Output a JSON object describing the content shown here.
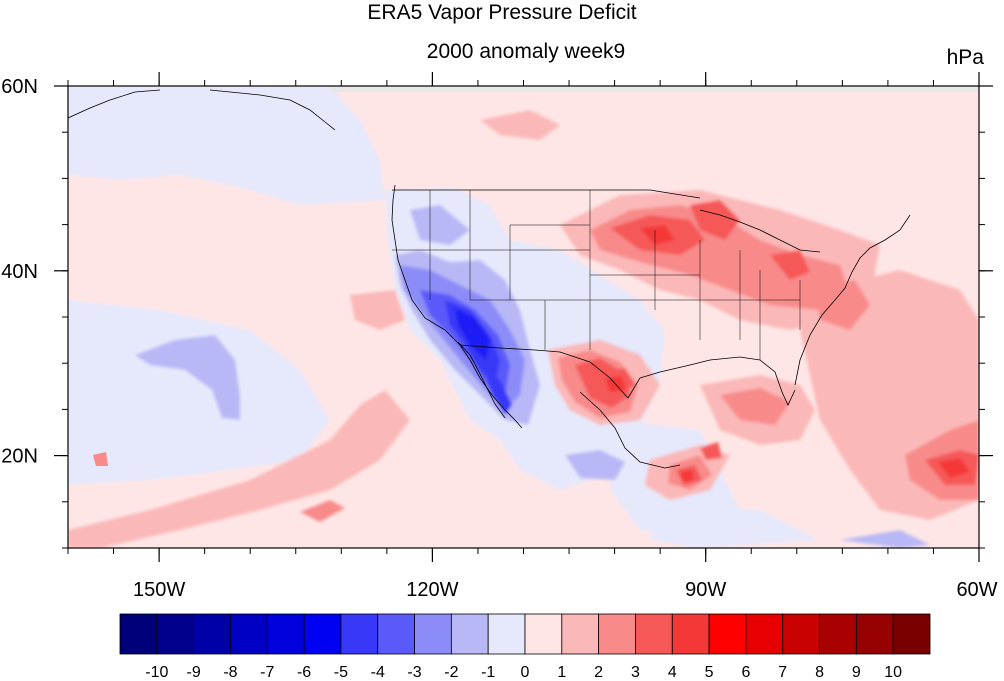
{
  "figure": {
    "title": "ERA5 Vapor Pressure Deficit",
    "subtitle": "2000 anomaly week9",
    "units": "hPa"
  },
  "map": {
    "lon_range": [
      -160,
      -60
    ],
    "lat_range": [
      10,
      60
    ],
    "lon_ticks": [
      {
        "value": -150,
        "label": "150W"
      },
      {
        "value": -120,
        "label": "120W"
      },
      {
        "value": -90,
        "label": "90W"
      },
      {
        "value": -60,
        "label": "60W"
      }
    ],
    "lat_ticks": [
      {
        "value": 60,
        "label": "60N"
      },
      {
        "value": 40,
        "label": "40N"
      },
      {
        "value": 20,
        "label": "20N"
      }
    ]
  },
  "colorbar": {
    "labels": [
      "-10",
      "-9",
      "-8",
      "-7",
      "-6",
      "-5",
      "-4",
      "-3",
      "-2",
      "-1",
      "0",
      "1",
      "2",
      "3",
      "4",
      "5",
      "6",
      "7",
      "8",
      "9",
      "10"
    ],
    "colors": [
      "#00007a",
      "#00008d",
      "#0000a8",
      "#0000c4",
      "#0000dc",
      "#0000f3",
      "#3838f8",
      "#5a5afb",
      "#8c8cf8",
      "#b8b8f6",
      "#e6e8fb",
      "#ffe6e6",
      "#fbb8b8",
      "#f88a8a",
      "#f65858",
      "#f43838",
      "#ff0000",
      "#e60000",
      "#c80000",
      "#a80000",
      "#960000",
      "#780000"
    ]
  },
  "chart_data": {
    "type": "heatmap",
    "title": "ERA5 Vapor Pressure Deficit",
    "subtitle": "2000 anomaly week9",
    "units": "hPa",
    "x_axis": {
      "range": [
        -160,
        -60
      ],
      "ticks": [
        "150W",
        "120W",
        "90W",
        "60W"
      ]
    },
    "y_axis": {
      "range": [
        10,
        60
      ],
      "ticks": [
        "60N",
        "40N",
        "20N"
      ]
    },
    "levels": [
      -10,
      -9,
      -8,
      -7,
      -6,
      -5,
      -4,
      -3,
      -2,
      -1,
      0,
      1,
      2,
      3,
      4,
      5,
      6,
      7,
      8,
      9,
      10
    ],
    "features": [
      {
        "lon": -113,
        "lat": 33,
        "value": -5
      },
      {
        "lon": -112,
        "lat": 27,
        "value": -4
      },
      {
        "lon": -108,
        "lat": 20,
        "value": -3
      },
      {
        "lon": -150,
        "lat": 30,
        "value": -2
      },
      {
        "lon": -94,
        "lat": 45,
        "value": 3
      },
      {
        "lon": -85,
        "lat": 41,
        "value": 3
      },
      {
        "lon": -103,
        "lat": 27,
        "value": 4
      },
      {
        "lon": -92,
        "lat": 18,
        "value": 4
      },
      {
        "lon": -64,
        "lat": 19,
        "value": 4
      },
      {
        "lon": -85,
        "lat": 24,
        "value": 3
      },
      {
        "lon": -115,
        "lat": 23,
        "value": 2
      },
      {
        "lon": -140,
        "lat": 15,
        "value": 2
      }
    ]
  }
}
